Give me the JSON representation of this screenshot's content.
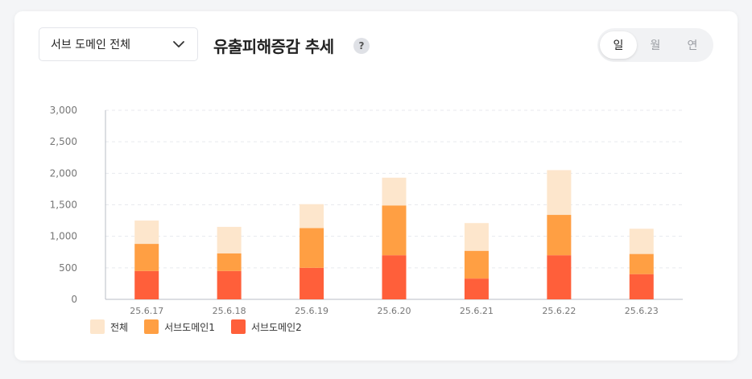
{
  "controls": {
    "subdomain_select": "서브 도메인 전체",
    "title": "유출피해증감 추세",
    "help": "?",
    "period_options": [
      "일",
      "월",
      "연"
    ],
    "active_period": "일"
  },
  "colors": {
    "total": "#fde6cc",
    "sub1": "#ff9f43",
    "sub2": "#ff5f3a"
  },
  "chart_data": {
    "type": "bar",
    "stacked": true,
    "categories": [
      "25.6.17",
      "25.6.18",
      "25.6.19",
      "25.6.20",
      "25.6.21",
      "25.6.22",
      "25.6.23"
    ],
    "series": [
      {
        "name": "서브도메인2",
        "values": [
          450,
          450,
          500,
          700,
          330,
          700,
          400
        ]
      },
      {
        "name": "서브도메인1",
        "values": [
          430,
          280,
          630,
          790,
          440,
          640,
          320
        ]
      },
      {
        "name": "전체",
        "values": [
          370,
          420,
          380,
          440,
          440,
          710,
          400
        ]
      }
    ],
    "ylim": [
      0,
      3000
    ],
    "yticks": [
      0,
      500,
      1000,
      1500,
      2000,
      2500,
      3000
    ],
    "ytick_labels": [
      "0",
      "500",
      "1,000",
      "1,500",
      "2,000",
      "2,500",
      "3,000"
    ],
    "grid": true,
    "legend_position": "bottom-left",
    "legend": [
      "전체",
      "서브도메인1",
      "서브도메인2"
    ]
  }
}
